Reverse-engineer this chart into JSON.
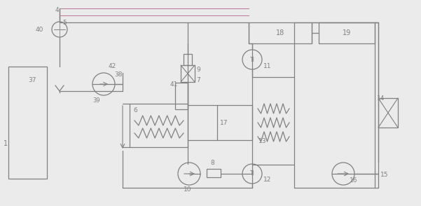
{
  "bg": "#ebebeb",
  "lc": "#808080",
  "plc": "#c080a0",
  "lw": 0.9,
  "figsize": [
    6.01,
    2.94
  ],
  "dpi": 100
}
